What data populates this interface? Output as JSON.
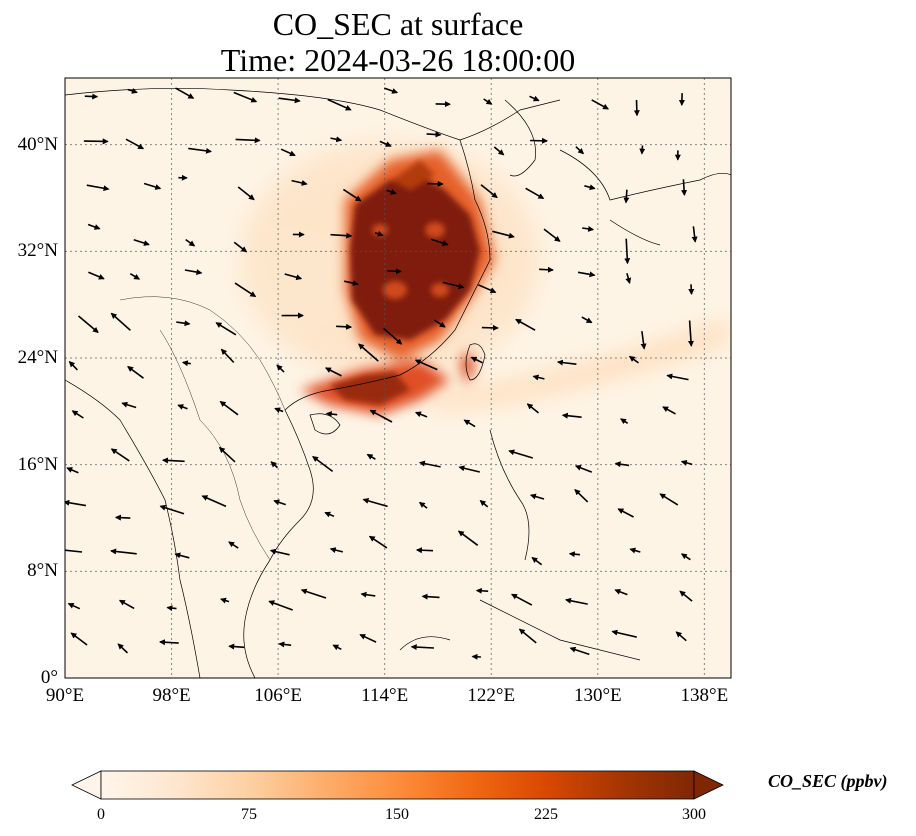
{
  "title_line1": "CO_SEC at surface",
  "title_line2": "Time: 2024-03-26 18:00:00",
  "map": {
    "lon_range": [
      90,
      140
    ],
    "lat_range": [
      0,
      45
    ],
    "lat_ticks": [
      {
        "value": 0,
        "label": "0°"
      },
      {
        "value": 8,
        "label": "8°N"
      },
      {
        "value": 16,
        "label": "16°N"
      },
      {
        "value": 24,
        "label": "24°N"
      },
      {
        "value": 32,
        "label": "32°N"
      },
      {
        "value": 40,
        "label": "40°N"
      }
    ],
    "lon_ticks": [
      {
        "value": 90,
        "label": "90°E"
      },
      {
        "value": 98,
        "label": "98°E"
      },
      {
        "value": 106,
        "label": "106°E"
      },
      {
        "value": 114,
        "label": "114°E"
      },
      {
        "value": 122,
        "label": "122°E"
      },
      {
        "value": 130,
        "label": "130°E"
      },
      {
        "value": 138,
        "label": "138°E"
      }
    ],
    "gridlines": true,
    "field": "CO_SEC",
    "vectors": "wind arrows"
  },
  "colorbar": {
    "label": "CO_SEC (ppbv)",
    "min": 0,
    "max": 300,
    "ticks": [
      "0",
      "75",
      "150",
      "225",
      "300"
    ],
    "extend": "both",
    "colormap": [
      "#fff5eb",
      "#fee6ce",
      "#fdd0a2",
      "#fdae6b",
      "#fd8d3c",
      "#f16913",
      "#d94801",
      "#a63603",
      "#7f2704"
    ]
  }
}
